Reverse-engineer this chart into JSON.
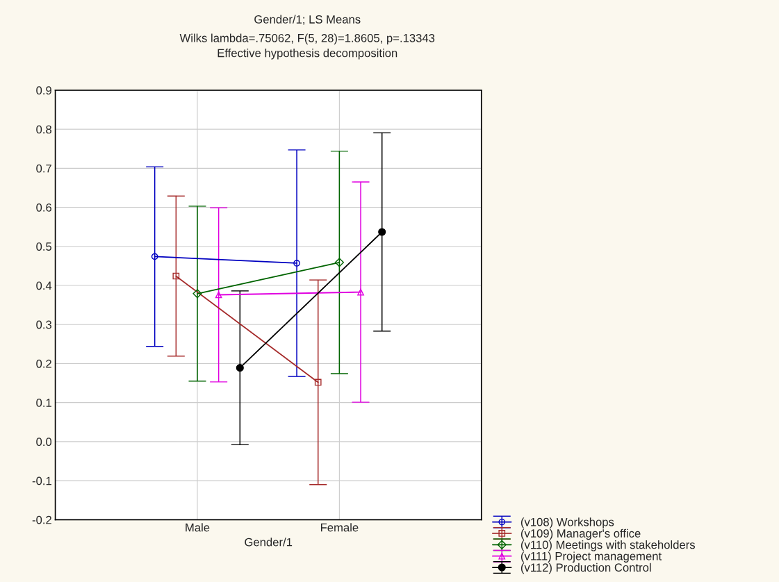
{
  "chart_data": {
    "type": "line",
    "title": "Gender/1; LS Means",
    "subtitle": "Wilks lambda=.75062, F(5, 28)=1.8605, p=.13343\nEffective hypothesis decomposition",
    "xlabel": "Gender/1",
    "categories": [
      "Male",
      "Female"
    ],
    "series": [
      {
        "name": "(v108) Workshops",
        "color": "#0000c0",
        "marker": "circle",
        "values": [
          0.474,
          0.457
        ],
        "errors": [
          0.23,
          0.29
        ]
      },
      {
        "name": "(v109) Manager's office",
        "color": "#a52a2a",
        "marker": "square",
        "values": [
          0.424,
          0.152
        ],
        "errors": [
          0.205,
          0.262
        ]
      },
      {
        "name": "(v110) Meetings with stakeholders",
        "color": "#006400",
        "marker": "diamond",
        "values": [
          0.379,
          0.459
        ],
        "errors": [
          0.224,
          0.285
        ]
      },
      {
        "name": "(v111) Project management",
        "color": "#e000e0",
        "marker": "triangle",
        "values": [
          0.376,
          0.383
        ],
        "errors": [
          0.223,
          0.282
        ]
      },
      {
        "name": "(v112) Production Control",
        "color": "#000000",
        "marker": "circle",
        "values": [
          0.189,
          0.537
        ],
        "errors": [
          0.197,
          0.254
        ]
      }
    ],
    "ylim": [
      -0.2,
      0.9
    ],
    "yticks": [
      -0.2,
      -0.1,
      {
        "value": 0,
        "label": "0.0"
      },
      0.1,
      0.2,
      0.3,
      0.4,
      0.5,
      0.6,
      0.7,
      0.8,
      0.9
    ],
    "grid": true,
    "legend": "bottom right",
    "line_style": "solid"
  }
}
